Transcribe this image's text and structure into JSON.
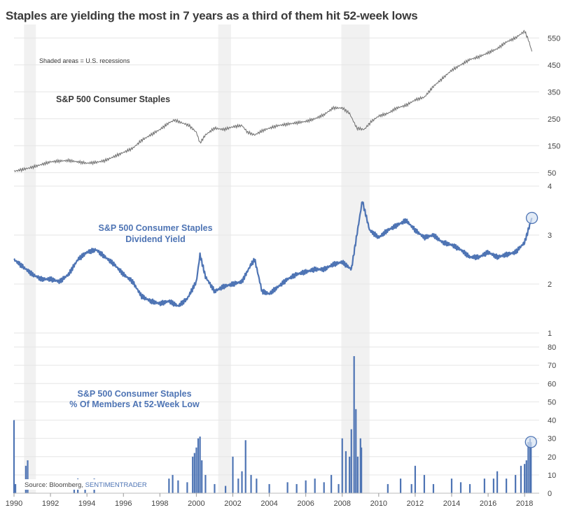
{
  "title": "Staples are yielding the most in 7 years as a third of them hit 52-week lows",
  "chart_data": [
    {
      "type": "line",
      "name": "price",
      "title": "S&P 500 Consumer Staples",
      "note": "Shaded areas = U.S. recessions",
      "ylim": [
        0,
        600
      ],
      "yticks": [
        50,
        150,
        250,
        350,
        450,
        550
      ],
      "color": "#6e6e6e",
      "x": [
        1990.0,
        1990.5,
        1991.0,
        1991.5,
        1992.0,
        1992.5,
        1993.0,
        1993.5,
        1994.0,
        1994.5,
        1995.0,
        1995.5,
        1996.0,
        1996.5,
        1997.0,
        1997.5,
        1998.0,
        1998.5,
        1998.8,
        1999.2,
        1999.6,
        2000.0,
        2000.2,
        2000.5,
        2001.0,
        2001.5,
        2002.0,
        2002.5,
        2002.8,
        2003.2,
        2003.6,
        2004.0,
        2004.5,
        2005.0,
        2005.5,
        2006.0,
        2006.5,
        2007.0,
        2007.5,
        2008.0,
        2008.4,
        2008.8,
        2009.2,
        2009.6,
        2010.0,
        2010.5,
        2011.0,
        2011.5,
        2012.0,
        2012.5,
        2013.0,
        2013.5,
        2014.0,
        2014.5,
        2015.0,
        2015.5,
        2016.0,
        2016.5,
        2017.0,
        2017.5,
        2018.0,
        2018.2,
        2018.4
      ],
      "values": [
        55,
        62,
        70,
        80,
        90,
        93,
        95,
        90,
        85,
        88,
        95,
        110,
        125,
        140,
        170,
        190,
        210,
        235,
        245,
        235,
        225,
        200,
        160,
        190,
        215,
        210,
        220,
        225,
        200,
        190,
        205,
        215,
        225,
        230,
        235,
        240,
        250,
        265,
        290,
        290,
        270,
        215,
        210,
        240,
        260,
        270,
        290,
        300,
        320,
        330,
        370,
        400,
        430,
        450,
        470,
        480,
        495,
        510,
        535,
        550,
        575,
        545,
        500
      ]
    },
    {
      "type": "line",
      "name": "yield",
      "title": "S&P 500 Consumer Staples",
      "subtitle": "Dividend Yield",
      "ylim": [
        1,
        4
      ],
      "yticks": [
        1,
        2,
        3,
        4
      ],
      "color": "#4e74b4",
      "x": [
        1990.0,
        1990.5,
        1991.0,
        1991.5,
        1992.0,
        1992.5,
        1993.0,
        1993.5,
        1994.0,
        1994.5,
        1995.0,
        1995.5,
        1996.0,
        1996.5,
        1997.0,
        1997.5,
        1998.0,
        1998.5,
        1999.0,
        1999.5,
        2000.0,
        2000.2,
        2000.5,
        2001.0,
        2001.5,
        2002.0,
        2002.5,
        2003.0,
        2003.2,
        2003.6,
        2004.0,
        2004.5,
        2005.0,
        2005.5,
        2006.0,
        2006.5,
        2007.0,
        2007.5,
        2008.0,
        2008.5,
        2008.8,
        2009.1,
        2009.5,
        2010.0,
        2010.5,
        2011.0,
        2011.5,
        2012.0,
        2012.5,
        2013.0,
        2013.5,
        2014.0,
        2014.5,
        2015.0,
        2015.5,
        2016.0,
        2016.5,
        2017.0,
        2017.5,
        2018.0,
        2018.2,
        2018.4
      ],
      "values": [
        2.5,
        2.35,
        2.2,
        2.1,
        2.1,
        2.05,
        2.2,
        2.5,
        2.65,
        2.7,
        2.55,
        2.4,
        2.2,
        2.05,
        1.75,
        1.65,
        1.6,
        1.65,
        1.55,
        1.7,
        2.05,
        2.6,
        2.15,
        1.85,
        1.95,
        2.0,
        2.05,
        2.4,
        2.5,
        1.85,
        1.8,
        1.95,
        2.1,
        2.2,
        2.25,
        2.3,
        2.3,
        2.4,
        2.45,
        2.3,
        3.0,
        3.7,
        3.1,
        2.95,
        3.1,
        3.2,
        3.3,
        3.1,
        2.95,
        3.0,
        2.85,
        2.8,
        2.7,
        2.55,
        2.55,
        2.65,
        2.55,
        2.6,
        2.65,
        2.85,
        3.1,
        3.35
      ]
    },
    {
      "type": "bar",
      "name": "lows",
      "title": "S&P 500 Consumer Staples",
      "subtitle": "% Of Members At 52-Week Low",
      "ylim": [
        0,
        80
      ],
      "yticks": [
        0,
        10,
        20,
        30,
        40,
        50,
        60,
        70,
        80
      ],
      "color": "#4e74b4",
      "x": [
        1990.0,
        1990.08,
        1990.65,
        1990.75,
        1993.3,
        1993.5,
        1993.9,
        1994.4,
        1998.5,
        1998.7,
        1999.0,
        1999.5,
        1999.8,
        1999.9,
        2000.0,
        2000.1,
        2000.2,
        2000.3,
        2000.5,
        2001.0,
        2001.6,
        2002.0,
        2002.3,
        2002.5,
        2002.7,
        2003.0,
        2003.3,
        2004.0,
        2005.0,
        2005.5,
        2006.0,
        2006.5,
        2007.0,
        2007.4,
        2007.8,
        2008.0,
        2008.2,
        2008.4,
        2008.5,
        2008.65,
        2008.75,
        2008.85,
        2009.0,
        2009.05,
        2010.5,
        2011.2,
        2011.8,
        2012.0,
        2012.5,
        2013.0,
        2014.0,
        2014.5,
        2015.0,
        2015.8,
        2016.3,
        2016.5,
        2017.0,
        2017.5,
        2017.8,
        2018.0,
        2018.1,
        2018.2,
        2018.3,
        2018.35
      ],
      "values": [
        40,
        5,
        15,
        18,
        5,
        8,
        6,
        8,
        8,
        10,
        7,
        6,
        20,
        22,
        25,
        30,
        31,
        18,
        10,
        5,
        4,
        20,
        8,
        12,
        29,
        10,
        8,
        5,
        6,
        5,
        7,
        8,
        6,
        10,
        5,
        30,
        23,
        20,
        35,
        75,
        46,
        20,
        30,
        25,
        5,
        8,
        5,
        15,
        10,
        5,
        8,
        6,
        5,
        8,
        8,
        12,
        8,
        10,
        15,
        16,
        18,
        28,
        30,
        28
      ]
    }
  ],
  "xaxis": {
    "min": 1990,
    "max": 2018.8,
    "ticks": [
      "1990",
      "1992",
      "1994",
      "1996",
      "1998",
      "2000",
      "2002",
      "2004",
      "2006",
      "2008",
      "2010",
      "2012",
      "2014",
      "2016",
      "2018"
    ]
  },
  "recessions": [
    [
      1990.55,
      1991.2
    ],
    [
      2001.2,
      2001.9
    ],
    [
      2007.95,
      2009.5
    ]
  ],
  "source": {
    "prefix": "Source: Bloomberg, ",
    "brand": "SENTIMENTRADER"
  },
  "colors": {
    "grid": "#e6e6e6",
    "recession": "#f1f1f1",
    "price_line": "#6e6e6e",
    "accent": "#4e74b4",
    "title_text": "#3a3a3a"
  }
}
